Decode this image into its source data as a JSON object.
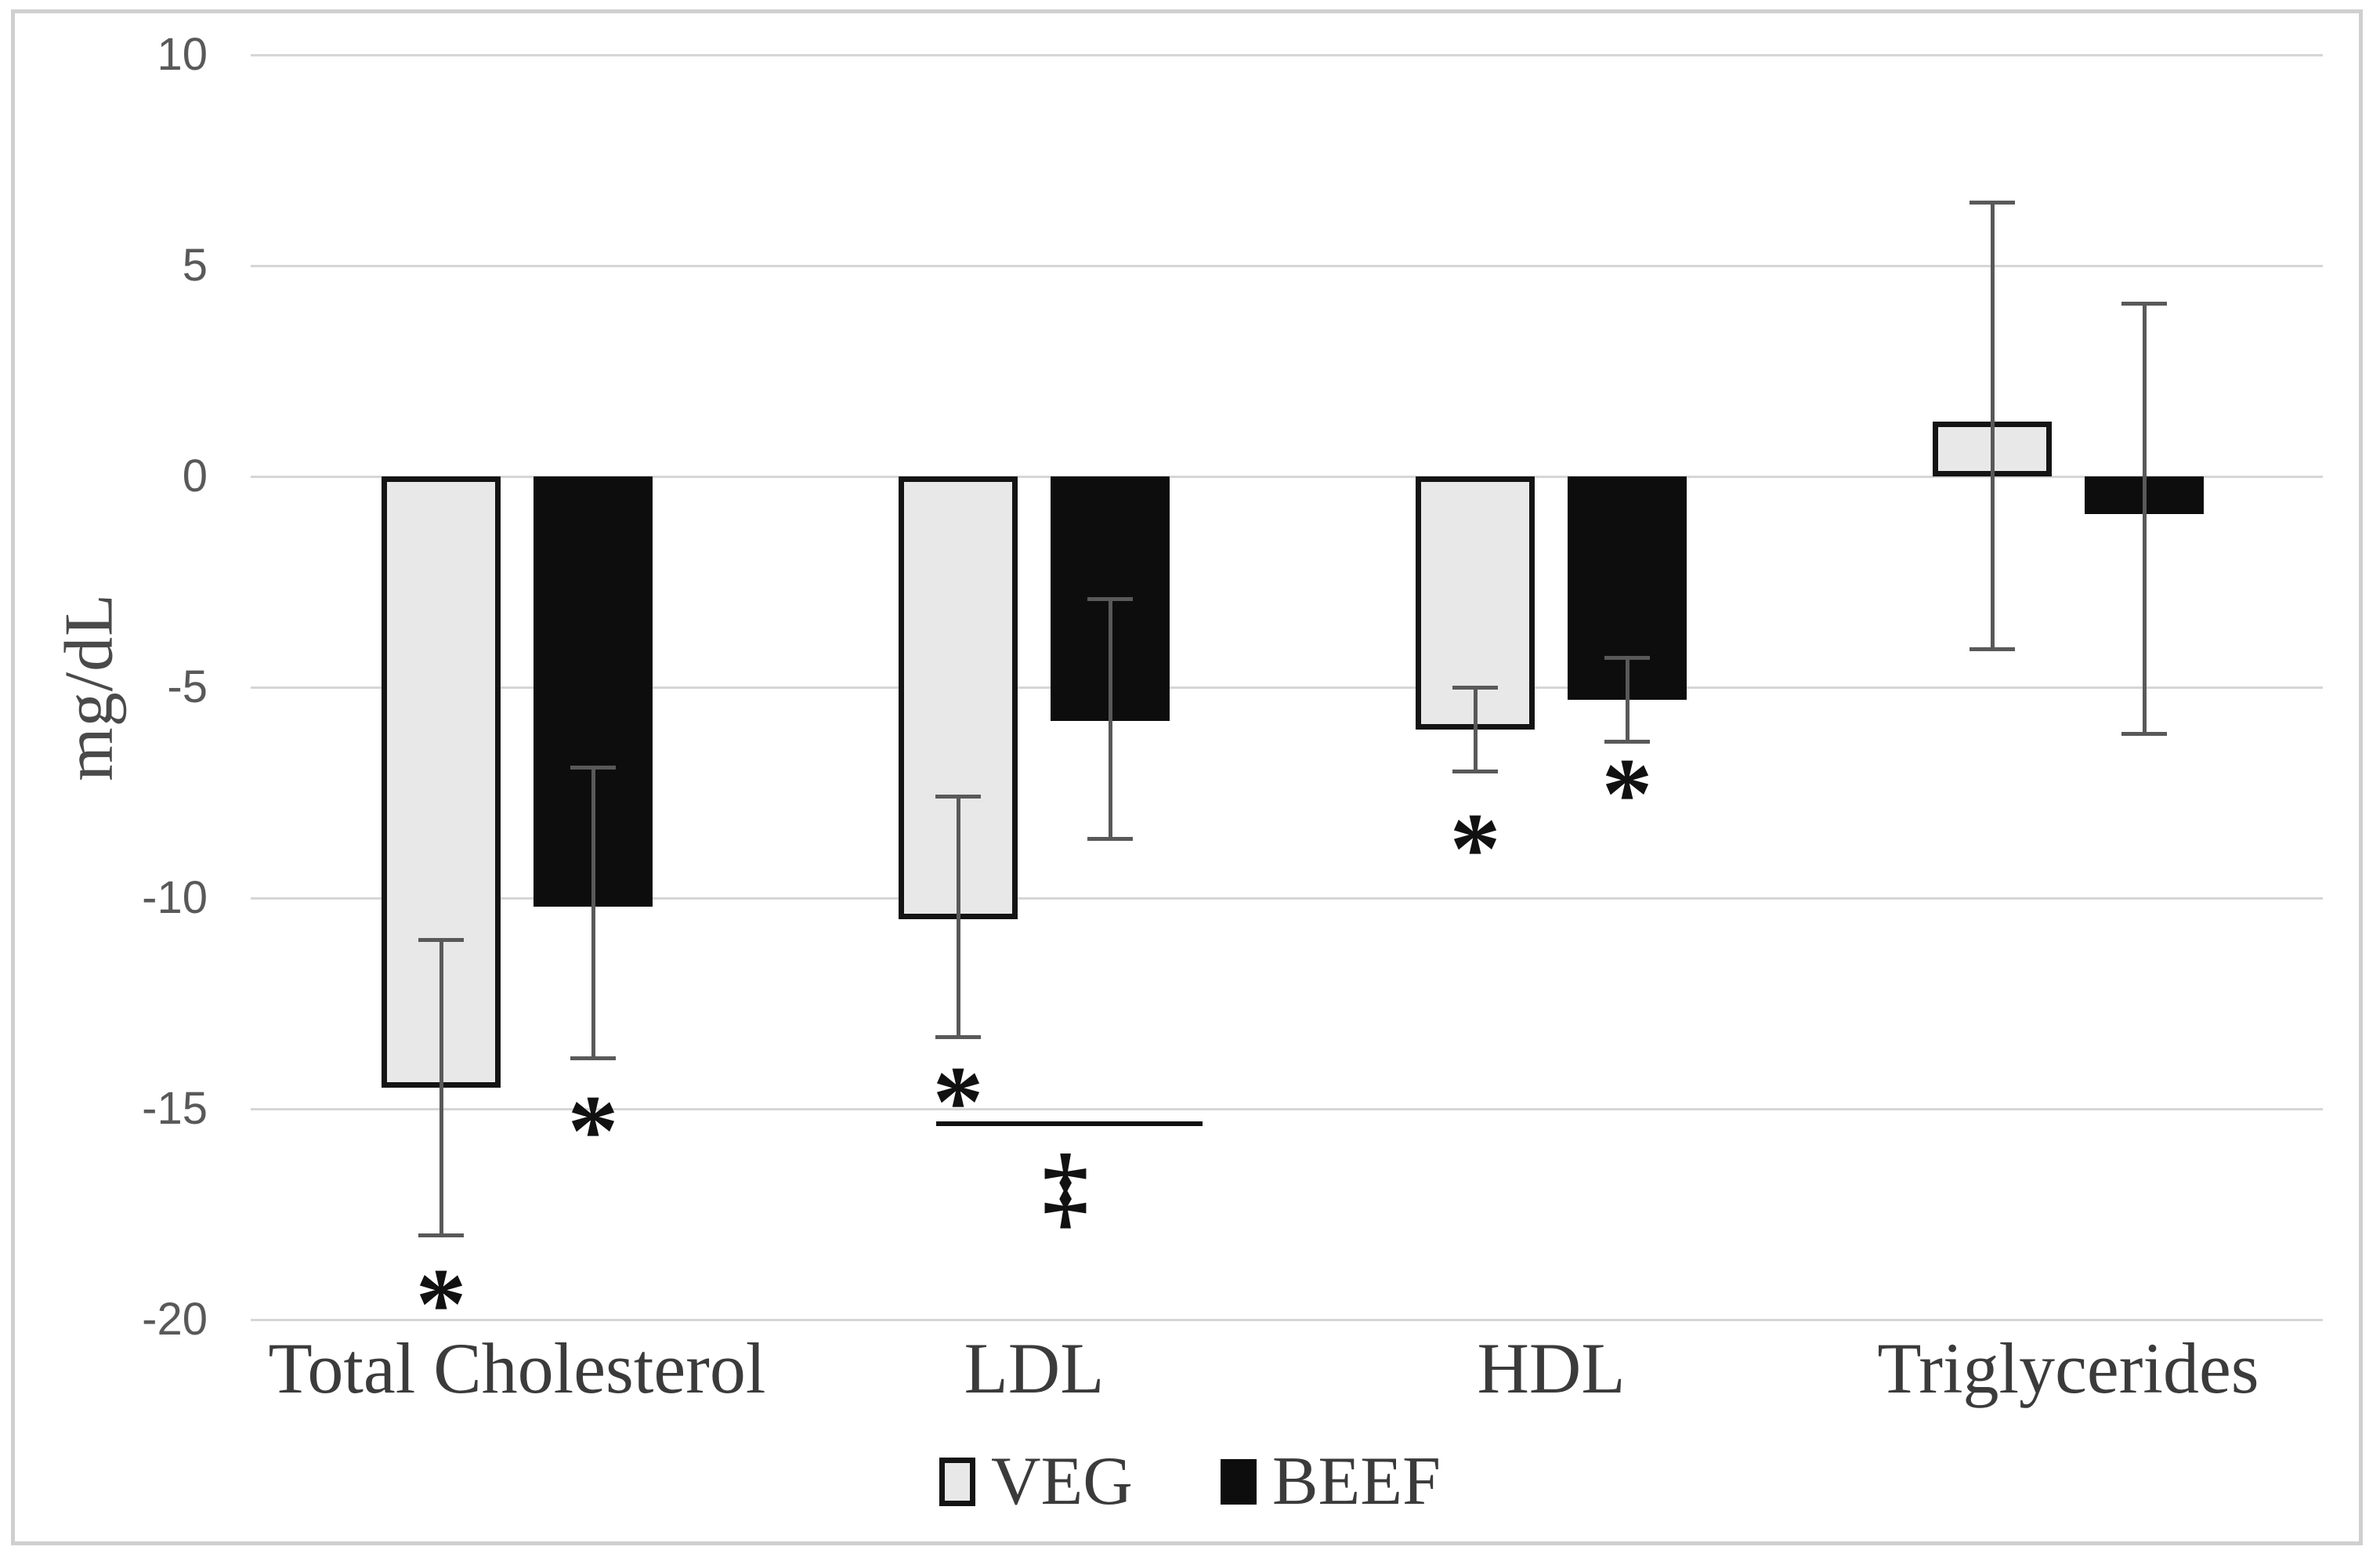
{
  "chart_data": {
    "type": "bar",
    "title": "",
    "xlabel": "",
    "ylabel": "mg/dL",
    "categories": [
      "Total Cholesterol",
      "LDL",
      "HDL",
      "Triglycerides"
    ],
    "y_axis": {
      "min": -20,
      "max": 10,
      "step": 5,
      "ticks": [
        10,
        5,
        0,
        -5,
        -10,
        -15,
        -20
      ],
      "unit": "mg/dL"
    },
    "grid": true,
    "legend_position": "bottom",
    "series": [
      {
        "name": "VEG",
        "fill": "#e8e8e8",
        "border": "#141414",
        "values": [
          -14.5,
          -10.5,
          -6.0,
          1.3
        ],
        "error_low": [
          -18.0,
          -13.3,
          -7.0,
          -4.1
        ],
        "error_high": [
          -11.0,
          -7.6,
          -5.0,
          6.5
        ],
        "significance": [
          "*",
          "*",
          "*",
          null
        ],
        "significance_y": [
          -19.2,
          -14.4,
          -8.4,
          null
        ]
      },
      {
        "name": "BEEF",
        "fill": "#0d0d0d",
        "border": "#0d0d0d",
        "values": [
          -10.2,
          -5.8,
          -5.3,
          -0.9
        ],
        "error_low": [
          -13.8,
          -8.6,
          -6.3,
          -6.1
        ],
        "error_high": [
          -6.9,
          -2.9,
          -4.3,
          4.1
        ],
        "significance": [
          "*",
          null,
          "*",
          null
        ],
        "significance_y": [
          -15.1,
          null,
          -7.1,
          null
        ]
      }
    ],
    "annotations": [
      {
        "type": "comparison-line",
        "category": "LDL",
        "category_index": 1,
        "symbol": "‡",
        "line_y": -15.35,
        "symbol_y": -16.9
      }
    ],
    "colors": {
      "gridline": "#d6d6d6",
      "tick_label": "#595959",
      "error_bar": "#595959",
      "category_label": "#3b3b3b",
      "axis_label": "#4a4a4a",
      "significance": "#111111",
      "figure_border": "#cfcfcf",
      "background": "#ffffff"
    }
  }
}
